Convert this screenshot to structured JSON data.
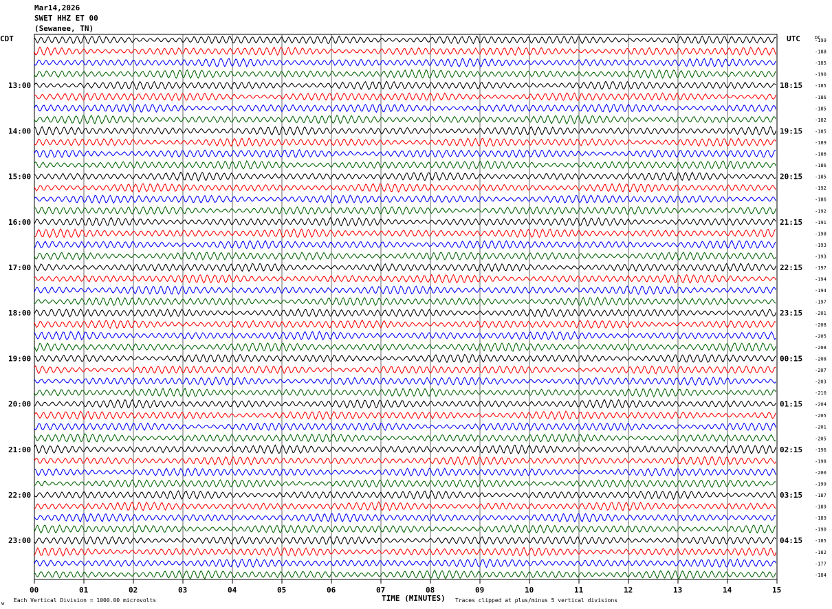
{
  "header": {
    "date": "Mar14,2026",
    "station": "SWET HHZ ET 00",
    "location": "(Sewanee, TN)"
  },
  "left_zone": "CDT",
  "right_zone": "UTC",
  "dc_label": "DC",
  "footer": {
    "scale_note": "Each Vertical Division = 1000.00 microvolts",
    "clip_note": "Traces clipped at plus/minus 5 vertical divisions",
    "logo_mark": "w"
  },
  "colors": {
    "trace_cycle": [
      "#000000",
      "#ff0000",
      "#0000ff",
      "#006400"
    ],
    "grid": "#000000",
    "background": "#ffffff"
  },
  "chart_data": {
    "type": "line",
    "title": "",
    "xlabel": "TIME (MINUTES)",
    "ylabel": "",
    "xlim": [
      0,
      15
    ],
    "x_ticks": [
      "00",
      "01",
      "02",
      "03",
      "04",
      "05",
      "06",
      "07",
      "08",
      "09",
      "10",
      "11",
      "12",
      "13",
      "14",
      "15"
    ],
    "left_time_labels": [
      "13:00",
      "14:00",
      "15:00",
      "16:00",
      "17:00",
      "18:00",
      "19:00",
      "20:00",
      "21:00",
      "22:00",
      "23:00"
    ],
    "right_time_labels": [
      "18:15",
      "19:15",
      "20:15",
      "21:15",
      "22:15",
      "23:15",
      "00:15",
      "01:15",
      "02:15",
      "03:15",
      "04:15"
    ],
    "dc_offsets": [
      -199,
      -188,
      -185,
      -190,
      -185,
      -186,
      -185,
      -182,
      -185,
      -189,
      -186,
      -186,
      -185,
      -192,
      -186,
      -192,
      -191,
      -198,
      -193,
      -193,
      -197,
      -194,
      -194,
      -197,
      -201,
      -208,
      -205,
      -208,
      -208,
      -207,
      -203,
      -210,
      -204,
      -205,
      -201,
      -205,
      -196,
      -198,
      -200,
      -199,
      -187,
      -189,
      -189,
      -190,
      -185,
      -182,
      -177,
      -184
    ],
    "traces_per_hour": 4,
    "minutes_per_trace": 15,
    "grid": true
  }
}
